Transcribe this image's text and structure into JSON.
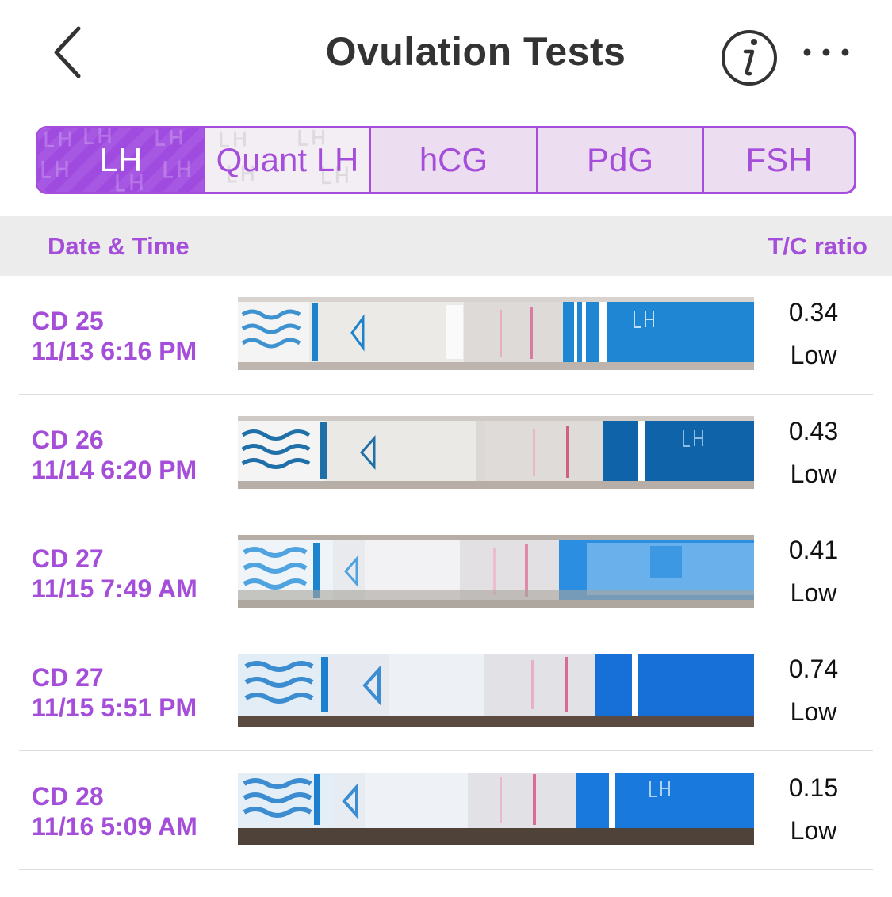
{
  "header": {
    "title": "Ovulation Tests",
    "back_icon": "chevron-left-icon",
    "info_icon": "info-icon",
    "more_icon": "more-icon",
    "accent": "#a44ed9"
  },
  "tabs": [
    {
      "label": "LH",
      "active": true
    },
    {
      "label": "Quant LH",
      "active": false
    },
    {
      "label": "hCG",
      "active": false
    },
    {
      "label": "PdG",
      "active": false
    },
    {
      "label": "FSH",
      "active": false
    }
  ],
  "columns": {
    "date": "Date & Time",
    "ratio": "T/C ratio"
  },
  "tests": [
    {
      "cd": "CD 25",
      "datetime": "11/13 6:16 PM",
      "ratio": "0.34",
      "level": "Low"
    },
    {
      "cd": "CD 26",
      "datetime": "11/14 6:20 PM",
      "ratio": "0.43",
      "level": "Low"
    },
    {
      "cd": "CD 27",
      "datetime": "11/15 7:49 AM",
      "ratio": "0.41",
      "level": "Low"
    },
    {
      "cd": "CD 27",
      "datetime": "11/15 5:51 PM",
      "ratio": "0.74",
      "level": "Low"
    },
    {
      "cd": "CD 28",
      "datetime": "11/16 5:09 AM",
      "ratio": "0.15",
      "level": "Low"
    }
  ]
}
